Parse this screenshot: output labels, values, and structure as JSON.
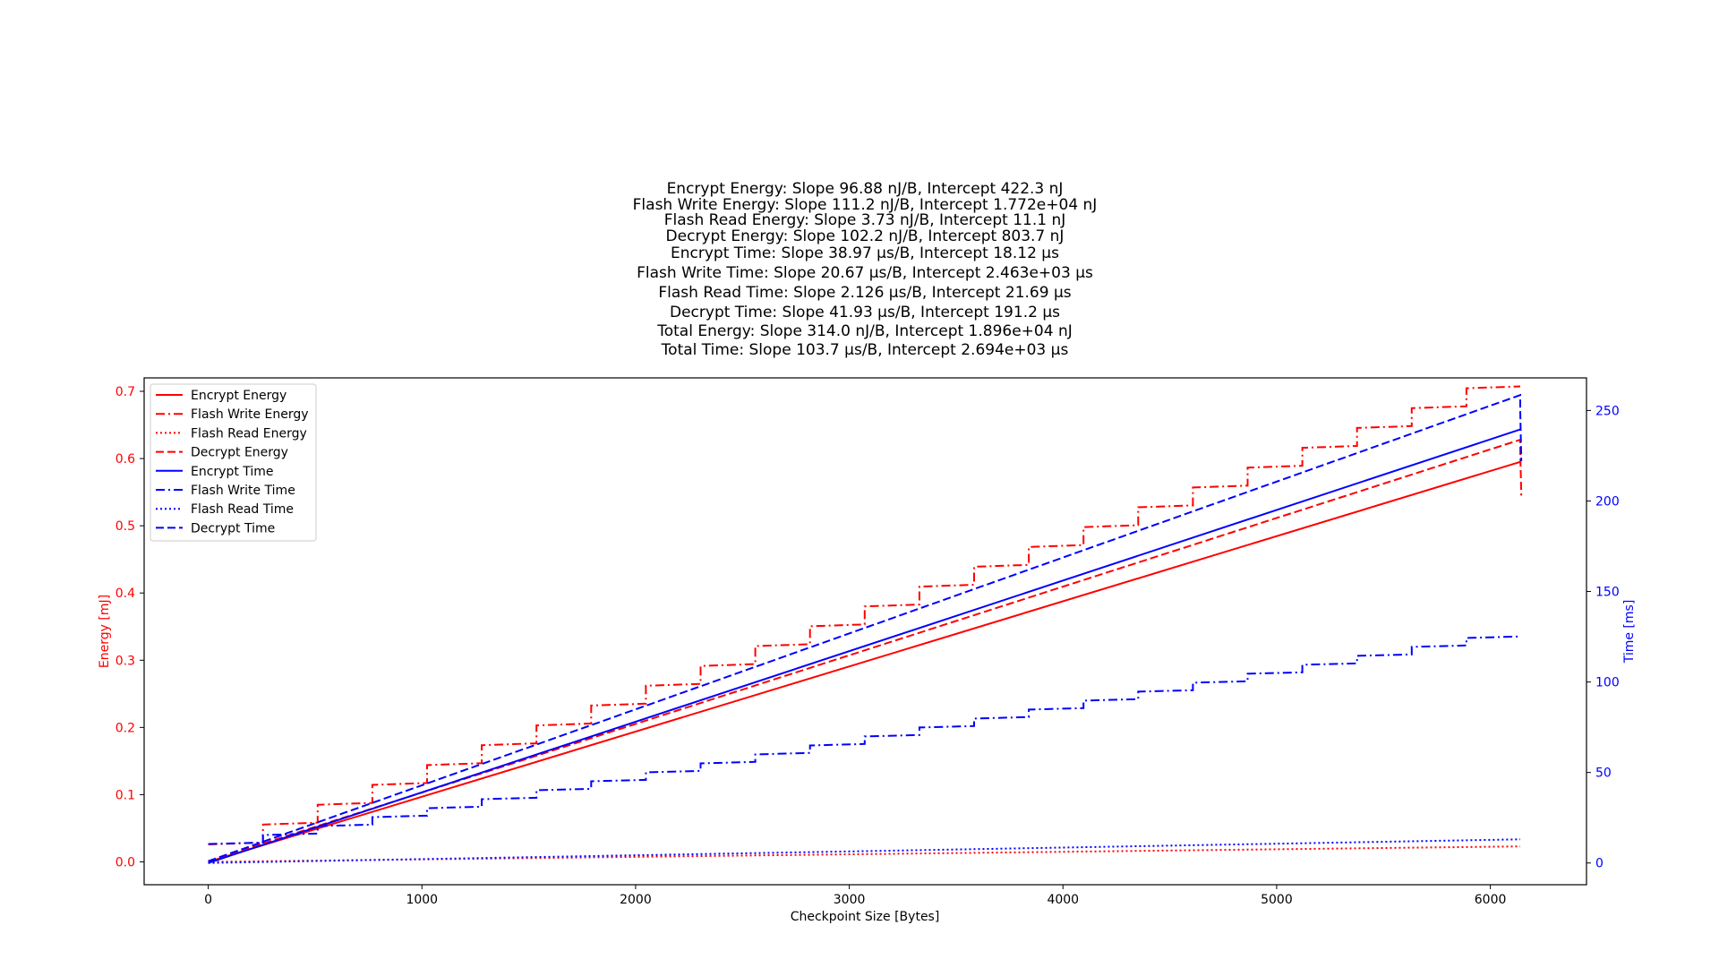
{
  "chart_data": {
    "type": "line",
    "title_lines": [
      "Encrypt Energy: Slope 96.88 nJ/B, Intercept 422.3 nJ",
      "Flash Write Energy: Slope 111.2 nJ/B, Intercept 1.772e+04 nJ",
      "Flash Read Energy: Slope 3.73 nJ/B, Intercept 11.1 nJ",
      "Decrypt Energy: Slope 102.2 nJ/B, Intercept 803.7 nJ",
      "Encrypt Time: Slope 38.97 μs/B, Intercept 18.12 μs",
      "Flash Write Time: Slope 20.67 μs/B, Intercept 2.463e+03 μs",
      "Flash Read Time: Slope 2.126 μs/B, Intercept 21.69 μs",
      "Decrypt Time: Slope 41.93 μs/B, Intercept 191.2 μs",
      "Total Energy: Slope 314.0 nJ/B, Intercept 1.896e+04 nJ",
      "Total Time: Slope 103.7 μs/B, Intercept 2.694e+03 μs"
    ],
    "xlabel": "Checkpoint Size [Bytes]",
    "ylabel_left": "Energy [mJ]",
    "ylabel_right": "Time [ms]",
    "xlim": [
      -300,
      6450
    ],
    "ylim_left": [
      -0.034,
      0.72
    ],
    "ylim_right": [
      -12,
      268
    ],
    "xticks": [
      "0",
      "1000",
      "2000",
      "3000",
      "4000",
      "5000",
      "6000"
    ],
    "yticks_left": [
      "0.0",
      "0.1",
      "0.2",
      "0.3",
      "0.4",
      "0.5",
      "0.6",
      "0.7"
    ],
    "yticks_right": [
      "0",
      "50",
      "100",
      "150",
      "200",
      "250"
    ],
    "legend_position": "upper left",
    "colors": {
      "energy": "#ff0000",
      "time": "#0000ff"
    },
    "series": [
      {
        "name": "Encrypt Energy",
        "axis": "left",
        "color": "#ff0000",
        "style": "solid",
        "points": [
          [
            0,
            0.0
          ],
          [
            6140,
            0.595
          ]
        ]
      },
      {
        "name": "Flash Write Energy",
        "axis": "left",
        "color": "#ff0000",
        "style": "dashdot",
        "step": {
          "start": 0.026,
          "increment": 0.0295,
          "width": 256,
          "count": 24,
          "within_step_rise": 0.0028
        }
      },
      {
        "name": "Flash Read Energy",
        "axis": "left",
        "color": "#ff0000",
        "style": "dotted",
        "points": [
          [
            0,
            0.0
          ],
          [
            6140,
            0.023
          ]
        ]
      },
      {
        "name": "Decrypt Energy",
        "axis": "left",
        "color": "#ff0000",
        "style": "dashed",
        "points": [
          [
            0,
            0.001
          ],
          [
            6140,
            0.628
          ],
          [
            6140,
            0.61
          ],
          [
            6145,
            0.545
          ]
        ]
      },
      {
        "name": "Encrypt Time",
        "axis": "right",
        "color": "#0000ff",
        "style": "solid",
        "points": [
          [
            0,
            0.0
          ],
          [
            6140,
            239.5
          ]
        ]
      },
      {
        "name": "Flash Write Time",
        "axis": "right",
        "color": "#0000ff",
        "style": "dashdot",
        "step": {
          "start": 10.5,
          "increment": 4.95,
          "width": 256,
          "count": 24,
          "within_step_rise": 0.8
        }
      },
      {
        "name": "Flash Read Time",
        "axis": "right",
        "color": "#0000ff",
        "style": "dotted",
        "points": [
          [
            0,
            0.0
          ],
          [
            6140,
            13.1
          ]
        ]
      },
      {
        "name": "Decrypt Time",
        "axis": "right",
        "color": "#0000ff",
        "style": "dashed",
        "points": [
          [
            0,
            1.0
          ],
          [
            6140,
            258.5
          ],
          [
            6140,
            250
          ],
          [
            6145,
            222
          ]
        ]
      }
    ]
  }
}
